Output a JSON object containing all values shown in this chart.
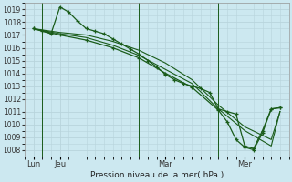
{
  "title": "Pression niveau de la mer( hPa )",
  "background_color": "#cce8f0",
  "grid_color": "#b8d4dc",
  "line_color": "#1a5c1a",
  "ylim": [
    1007.5,
    1019.5
  ],
  "yticks": [
    1008,
    1009,
    1010,
    1011,
    1012,
    1013,
    1014,
    1015,
    1016,
    1017,
    1018,
    1019
  ],
  "xlim": [
    0,
    15
  ],
  "x_ticks": [
    0.5,
    2.0,
    8.0,
    12.5
  ],
  "x_labels": [
    "Lun",
    "Jeu",
    "Mar",
    "Mer"
  ],
  "vlines": [
    1.0,
    6.5,
    11.0
  ],
  "series": {
    "line1": {
      "x": [
        0.5,
        1.0,
        1.5,
        2.0,
        2.5,
        3.0,
        3.5,
        4.0,
        4.5,
        5.0,
        5.5,
        6.0,
        6.5,
        7.0,
        7.5,
        8.0,
        8.5,
        9.0,
        9.5,
        10.0,
        10.5,
        11.0,
        11.5,
        12.0,
        12.5,
        13.0,
        13.5,
        14.0,
        14.5
      ],
      "y": [
        1017.5,
        1017.3,
        1017.1,
        1019.2,
        1018.8,
        1018.1,
        1017.5,
        1017.3,
        1017.1,
        1016.7,
        1016.3,
        1015.9,
        1015.5,
        1015.0,
        1014.5,
        1013.9,
        1013.5,
        1013.2,
        1013.0,
        1012.8,
        1012.5,
        1011.2,
        1011.0,
        1010.8,
        1008.3,
        1008.1,
        1009.5,
        1011.2,
        1011.3
      ],
      "marker": true
    },
    "line2": {
      "x": [
        0.5,
        2.0,
        3.5,
        5.0,
        6.5,
        8.0,
        9.5,
        11.0,
        12.5,
        14.0,
        14.5
      ],
      "y": [
        1017.5,
        1017.2,
        1017.0,
        1016.5,
        1015.8,
        1014.8,
        1013.5,
        1011.5,
        1009.8,
        1008.8,
        1011.0
      ],
      "marker": false
    },
    "line3": {
      "x": [
        0.5,
        2.0,
        3.5,
        5.0,
        6.5,
        8.0,
        9.5,
        11.0,
        12.5,
        14.0,
        14.5
      ],
      "y": [
        1017.5,
        1017.1,
        1016.8,
        1016.2,
        1015.4,
        1014.3,
        1013.2,
        1011.2,
        1009.5,
        1008.3,
        1011.0
      ],
      "marker": false
    },
    "line4": {
      "x": [
        0.5,
        2.0,
        3.5,
        5.0,
        6.5,
        8.0,
        9.5,
        11.0,
        11.5,
        12.0,
        12.5,
        13.0,
        13.5,
        14.0,
        14.5
      ],
      "y": [
        1017.5,
        1017.0,
        1016.6,
        1016.0,
        1015.2,
        1014.0,
        1012.9,
        1011.1,
        1010.2,
        1008.8,
        1008.2,
        1008.0,
        1009.3,
        1011.2,
        1011.3
      ],
      "marker": true
    }
  }
}
